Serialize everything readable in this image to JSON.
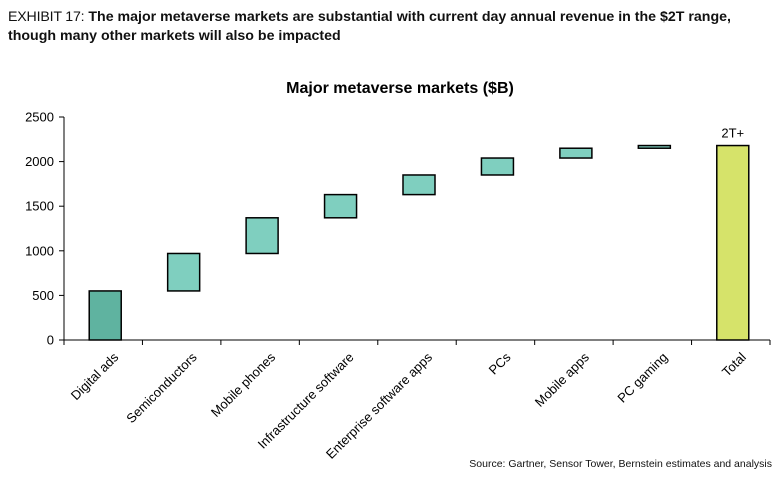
{
  "exhibit": {
    "label": "EXHIBIT 17:",
    "headline": "The major metaverse markets are substantial with current day annual revenue in the $2T range, though many other markets will also be impacted"
  },
  "source": "Source: Gartner, Sensor Tower, Bernstein estimates and analysis",
  "colors": {
    "step_fill": "#7fcfbf",
    "first_fill": "#5fb3a0",
    "total_fill": "#d6e36a",
    "bar_stroke": "#000000"
  },
  "chart_data": {
    "type": "bar",
    "subtype": "waterfall",
    "title": "Major metaverse markets ($B)",
    "xlabel": "",
    "ylabel": "",
    "ylim": [
      0,
      2500
    ],
    "yticks": [
      0,
      500,
      1000,
      1500,
      2000,
      2500
    ],
    "grid": false,
    "categories": [
      "Digital ads",
      "Semiconductors",
      "Mobile phones",
      "Infrastructure software",
      "Enterprise software apps",
      "PCs",
      "Mobile apps",
      "PC gaming",
      "Total"
    ],
    "bars": [
      {
        "category": "Digital ads",
        "start": 0,
        "end": 550,
        "kind": "first"
      },
      {
        "category": "Semiconductors",
        "start": 550,
        "end": 970,
        "kind": "step"
      },
      {
        "category": "Mobile phones",
        "start": 970,
        "end": 1370,
        "kind": "step"
      },
      {
        "category": "Infrastructure software",
        "start": 1370,
        "end": 1630,
        "kind": "step"
      },
      {
        "category": "Enterprise software apps",
        "start": 1630,
        "end": 1850,
        "kind": "step"
      },
      {
        "category": "PCs",
        "start": 1850,
        "end": 2040,
        "kind": "step"
      },
      {
        "category": "Mobile apps",
        "start": 2040,
        "end": 2150,
        "kind": "step"
      },
      {
        "category": "PC gaming",
        "start": 2150,
        "end": 2180,
        "kind": "step"
      },
      {
        "category": "Total",
        "start": 0,
        "end": 2180,
        "kind": "total",
        "label": "2T+"
      }
    ]
  }
}
